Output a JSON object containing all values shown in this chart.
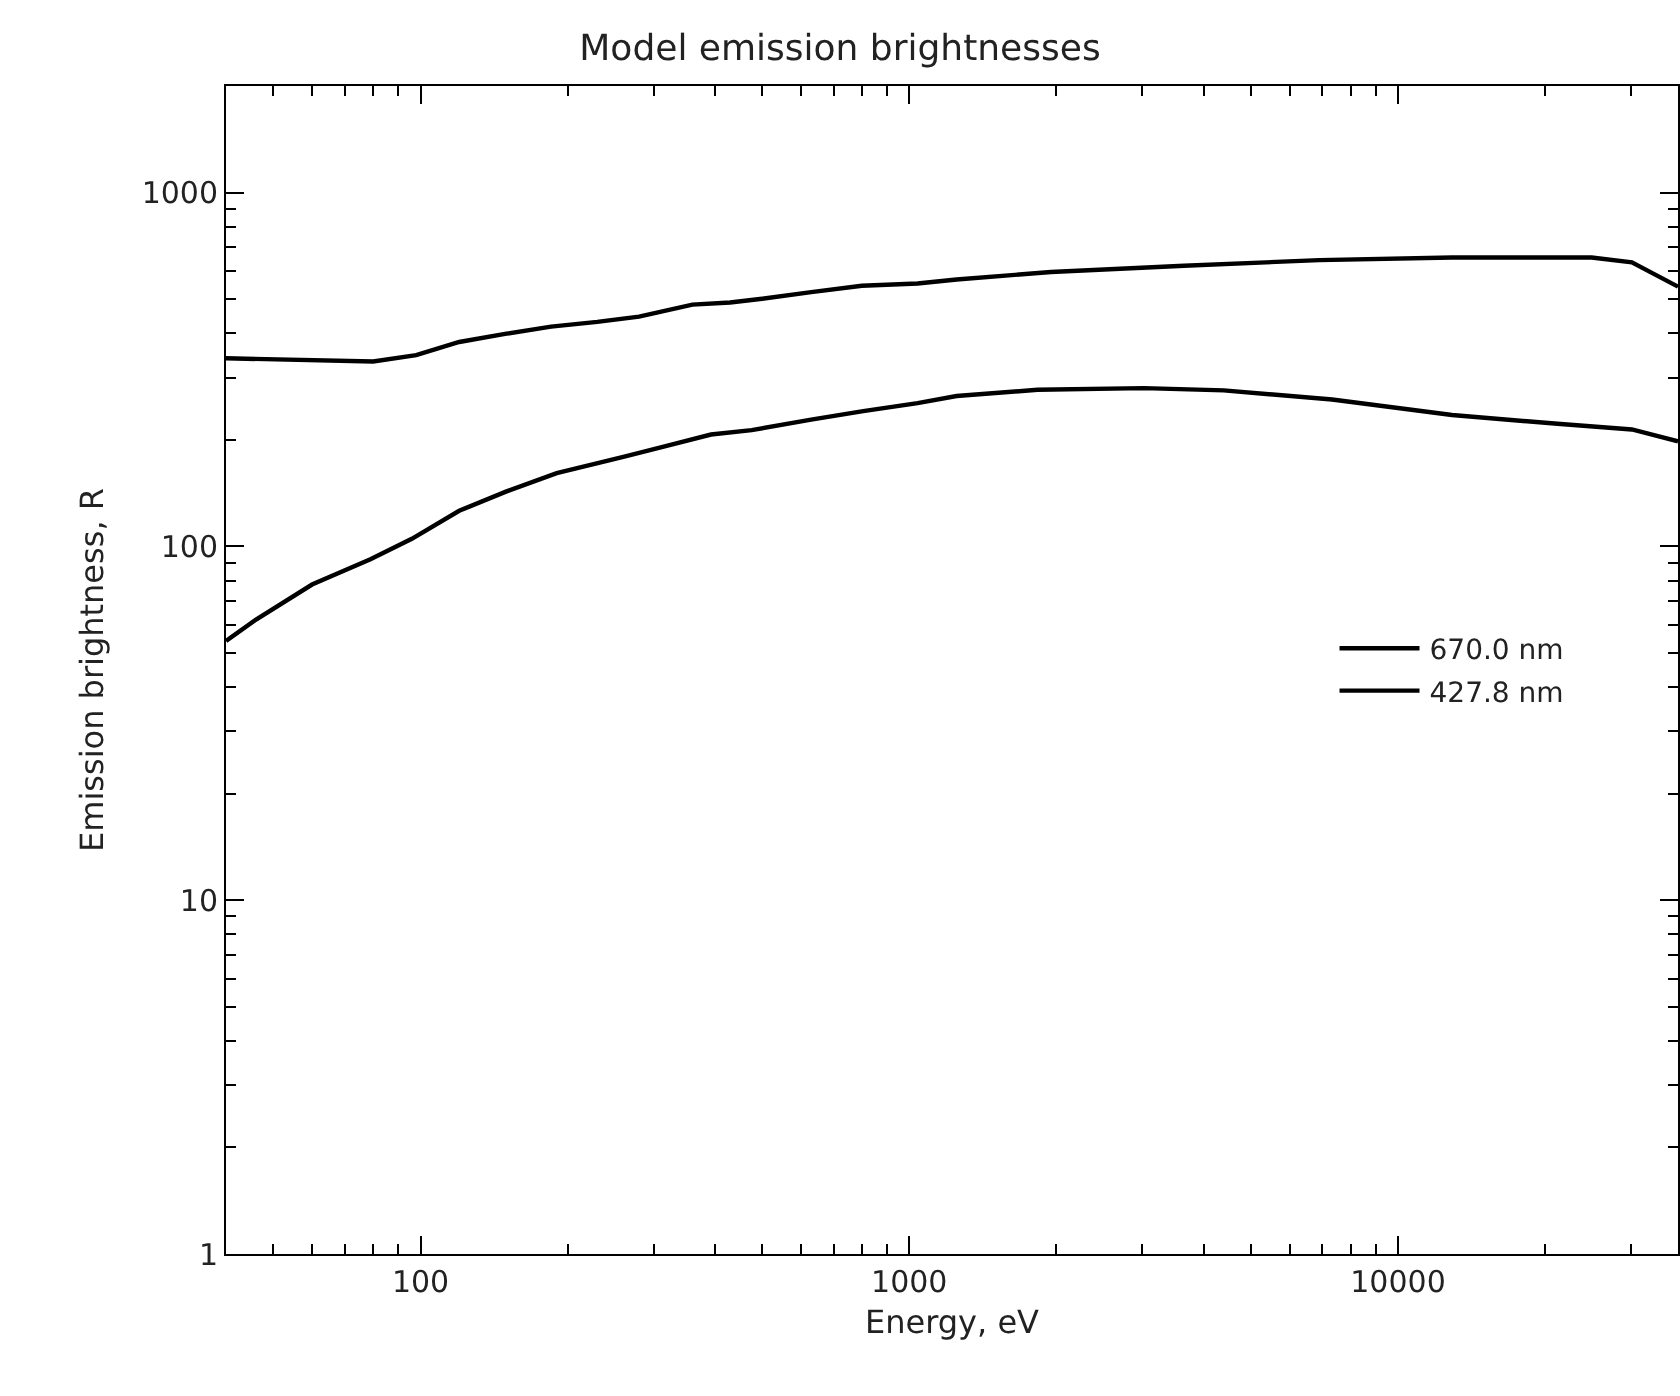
{
  "chart_data": {
    "type": "line",
    "title": "Model emission brightnesses",
    "xlabel": "Energy, eV",
    "ylabel": "Emission brightness, R",
    "log": "xy",
    "xlim": [
      40,
      37400
    ],
    "ylim": [
      1,
      2000
    ],
    "xticks": [
      100,
      1000,
      10000
    ],
    "yticks": [
      1,
      10,
      100,
      1000
    ],
    "legend": "right",
    "marker": "none",
    "line_style": "solid",
    "series": [
      {
        "name": "670.0 nm",
        "color": "#000000",
        "x": [
          40,
          80,
          98,
          120,
          150,
          185,
          230,
          280,
          360,
          430,
          500,
          630,
          800,
          1040,
          1250,
          1950,
          3650,
          6900,
          12900,
          24900,
          30100,
          37400
        ],
        "values": [
          340,
          333,
          347,
          378,
          399,
          418,
          431,
          446,
          482,
          489,
          501,
          523,
          545,
          553,
          568,
          596,
          621,
          644,
          655,
          655,
          635,
          542
        ]
      },
      {
        "name": "427.8 nm",
        "color": "#000000",
        "x": [
          40,
          46,
          60,
          79,
          96,
          120,
          150,
          190,
          260,
          313,
          393,
          476,
          630,
          805,
          1040,
          1250,
          1830,
          3020,
          4400,
          7330,
          12900,
          21200,
          30100,
          37400
        ],
        "values": [
          54,
          62,
          78,
          92,
          105,
          126,
          143,
          161,
          179,
          191,
          207,
          213,
          228,
          241,
          254,
          266,
          277,
          280,
          276,
          260,
          235,
          222,
          214,
          198
        ]
      }
    ]
  }
}
